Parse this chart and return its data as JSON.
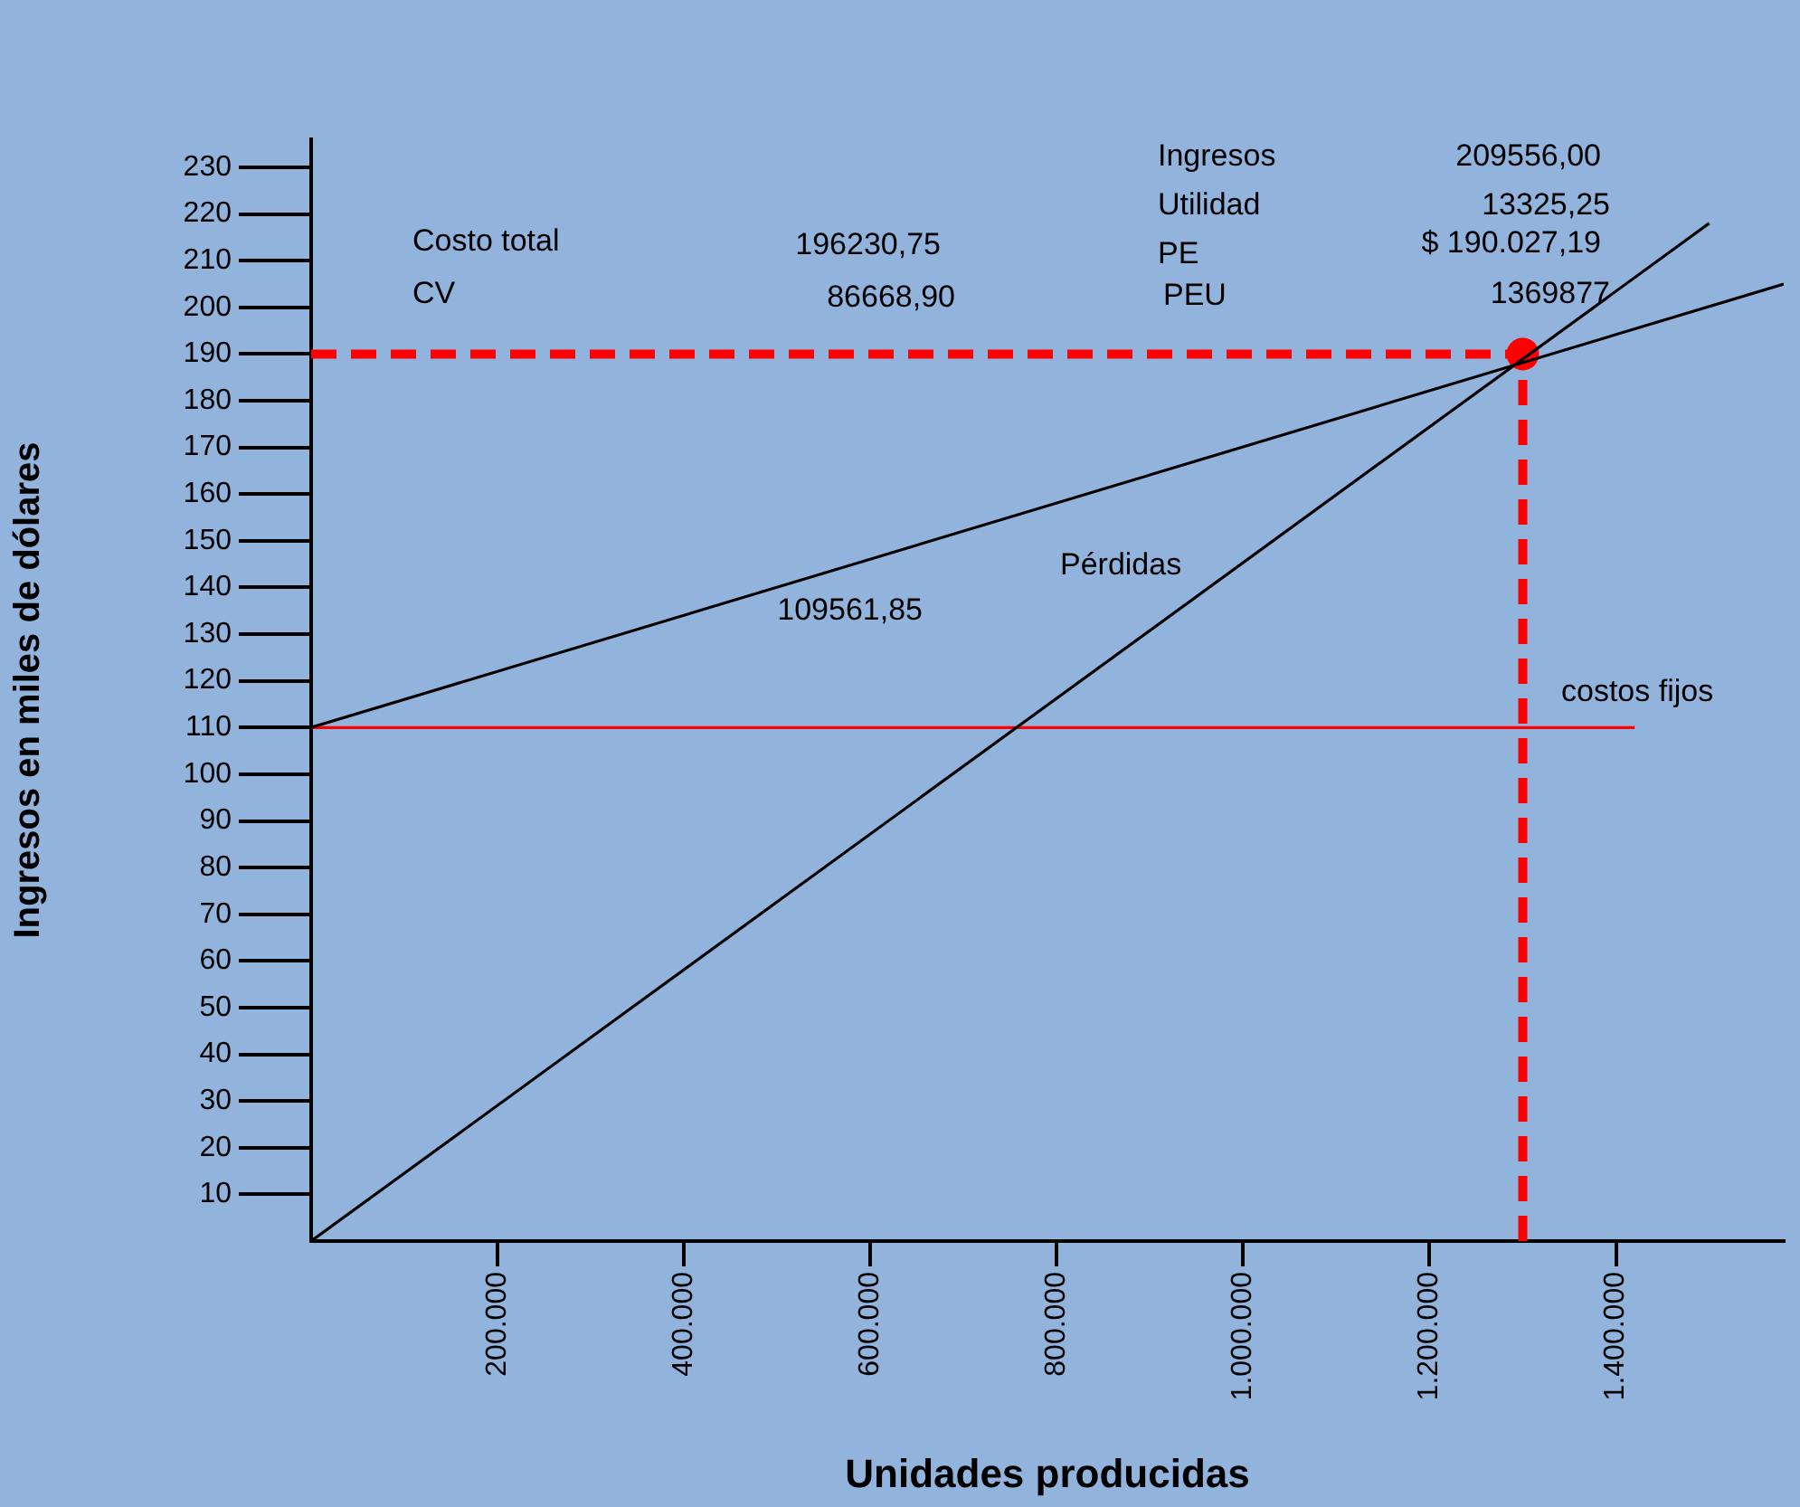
{
  "chart_data": {
    "type": "line",
    "xlabel": "Unidades producidas",
    "ylabel": "Ingresos en miles de dólares",
    "xlim": [
      0,
      1580000
    ],
    "ylim": [
      0,
      236
    ],
    "xticks": [
      {
        "value": 200000,
        "label": "200.000"
      },
      {
        "value": 400000,
        "label": "400.000"
      },
      {
        "value": 600000,
        "label": "600.000"
      },
      {
        "value": 800000,
        "label": "800.000"
      },
      {
        "value": 1000000,
        "label": "1.000.000"
      },
      {
        "value": 1200000,
        "label": "1.200.000"
      },
      {
        "value": 1400000,
        "label": "1.400.000"
      }
    ],
    "yticks": [
      10,
      20,
      30,
      40,
      50,
      60,
      70,
      80,
      90,
      100,
      110,
      120,
      130,
      140,
      150,
      160,
      170,
      180,
      190,
      200,
      210,
      220,
      230
    ],
    "legend": false,
    "series": [
      {
        "color": "#000000",
        "x": [
          0,
          1500000
        ],
        "values": [
          0,
          218
        ],
        "line_style": "solid",
        "marker": "none"
      },
      {
        "color": "#000000",
        "x": [
          0,
          1580000
        ],
        "values": [
          110,
          205
        ],
        "line_style": "solid",
        "marker": "none"
      },
      {
        "color": "#ff0000",
        "x": [
          0,
          1420000
        ],
        "values": [
          110,
          110
        ],
        "line_style": "solid",
        "marker": "none"
      },
      {
        "color": "#ff0000",
        "x": [
          0,
          1300000
        ],
        "values": [
          190,
          190
        ],
        "line_style": "dashed",
        "marker": "none"
      },
      {
        "color": "#ff0000",
        "x": [
          1300000,
          1300000
        ],
        "values": [
          0,
          190
        ],
        "line_style": "dashed",
        "marker": "none"
      },
      {
        "type": "scatter",
        "color": "#ff0000",
        "x": [
          1300000
        ],
        "values": [
          190
        ],
        "marker": "circle"
      }
    ],
    "annotations": [
      "Costo total",
      "196230,75",
      "CV",
      "86668,90",
      "Ingresos",
      "209556,00",
      "Utilidad",
      "13325,25",
      "PE",
      "$ 190.027,19",
      "PEU",
      "1369877",
      "Pérdidas",
      "109561,85",
      "costos fijos"
    ]
  }
}
